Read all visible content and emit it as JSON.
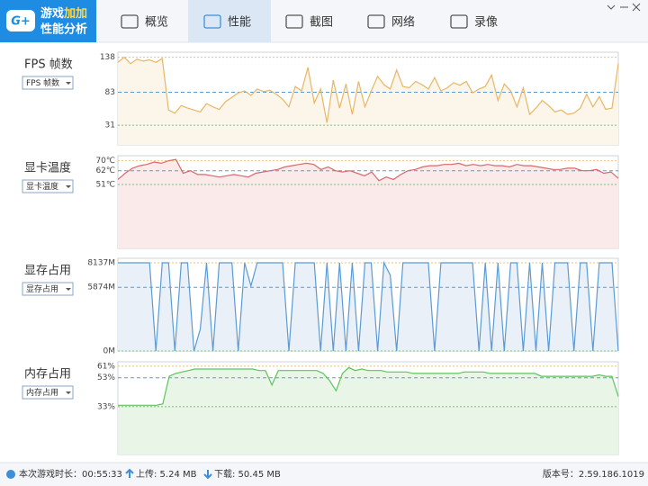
{
  "header": {
    "logo_icon": "G+",
    "logo_top": [
      "游戏",
      "加加"
    ],
    "logo_bottom": "性能分析",
    "tabs": [
      "概览",
      "性能",
      "截图",
      "网络",
      "录像"
    ],
    "active_tab": 1
  },
  "chart_data": [
    {
      "type": "area",
      "title": "FPS 帧数",
      "selector": "FPS 帧数",
      "color": "#e8b667",
      "fill": "#fbf5ea",
      "ylim": [
        0,
        146
      ],
      "yticks": [
        138,
        83,
        31
      ],
      "values": [
        130,
        138,
        128,
        135,
        132,
        134,
        130,
        136,
        55,
        50,
        62,
        58,
        55,
        52,
        65,
        60,
        56,
        68,
        75,
        82,
        85,
        78,
        88,
        84,
        86,
        80,
        72,
        60,
        92,
        85,
        122,
        66,
        88,
        35,
        102,
        58,
        96,
        48,
        100,
        60,
        85,
        108,
        95,
        88,
        118,
        92,
        90,
        100,
        95,
        88,
        106,
        85,
        90,
        98,
        94,
        100,
        82,
        88,
        92,
        110,
        70,
        96,
        85,
        60,
        90,
        48,
        58,
        70,
        62,
        52,
        55,
        48,
        50,
        58,
        80,
        60,
        76,
        56,
        58,
        128
      ]
    },
    {
      "type": "area",
      "title": "显卡温度",
      "selector": "显卡温度",
      "color": "#d9686b",
      "fill": "#fbeaea",
      "ylim": [
        0,
        74
      ],
      "yticks": [
        {
          "value": 70,
          "label": "70℃"
        },
        {
          "value": 62,
          "label": "62℃"
        },
        {
          "value": 51,
          "label": "51℃"
        }
      ],
      "values": [
        55,
        60,
        64,
        66,
        67,
        69,
        68,
        70,
        71,
        60,
        62,
        59,
        59,
        58,
        57,
        58,
        59,
        58,
        57,
        60,
        61,
        62,
        63,
        65,
        66,
        67,
        68,
        67,
        63,
        65,
        62,
        61,
        62,
        60,
        58,
        61,
        54,
        57,
        55,
        59,
        62,
        63,
        65,
        66,
        66,
        67,
        67,
        68,
        66,
        67,
        66,
        67,
        66,
        66,
        65,
        67,
        66,
        66,
        65,
        64,
        63,
        63,
        64,
        64,
        62,
        62,
        63,
        60,
        61,
        56
      ]
    },
    {
      "type": "area",
      "title": "显存占用",
      "selector": "显存占用",
      "color": "#5b9bd5",
      "fill": "#eaf0f8",
      "ylim": [
        0,
        8550
      ],
      "yticks": [
        {
          "value": 8137,
          "label": "8137M"
        },
        {
          "value": 5874,
          "label": "5874M"
        },
        {
          "value": 0,
          "label": "0M"
        }
      ],
      "values": [
        8137,
        8137,
        8137,
        8137,
        8137,
        8137,
        0,
        8137,
        8137,
        0,
        8137,
        8137,
        0,
        2000,
        8137,
        0,
        8137,
        8137,
        8137,
        0,
        8137,
        6000,
        8137,
        8137,
        8137,
        8137,
        8137,
        0,
        8137,
        8137,
        8137,
        8137,
        0,
        8137,
        0,
        8137,
        0,
        8137,
        0,
        8137,
        8137,
        0,
        8137,
        7000,
        0,
        8137,
        8137,
        8137,
        8137,
        8137,
        0,
        8137,
        8137,
        8137,
        8137,
        8137,
        8137,
        0,
        8137,
        0,
        8137,
        0,
        8137,
        8137,
        0,
        8137,
        0,
        8137,
        0,
        8137,
        8137,
        8137,
        0,
        8137,
        8137,
        0,
        8137,
        8137,
        8137,
        0
      ]
    },
    {
      "type": "area",
      "title": "内存占用",
      "selector": "内存占用",
      "color": "#5cc65c",
      "fill": "#e9f5e6",
      "ylim": [
        0,
        64
      ],
      "yticks": [
        {
          "value": 61,
          "label": "61%"
        },
        {
          "value": 53,
          "label": "53%"
        },
        {
          "value": 33,
          "label": "33%"
        }
      ],
      "values": [
        34,
        34,
        34,
        34,
        34,
        34,
        34,
        35,
        54,
        56,
        57,
        58,
        59,
        59,
        59,
        59,
        59,
        59,
        59,
        59,
        59,
        59,
        58,
        58,
        48,
        58,
        58,
        58,
        58,
        58,
        58,
        58,
        56,
        51,
        44,
        56,
        60,
        58,
        59,
        58,
        58,
        58,
        57,
        57,
        57,
        57,
        56,
        56,
        56,
        56,
        56,
        56,
        56,
        56,
        57,
        57,
        57,
        57,
        56,
        56,
        56,
        56,
        56,
        56,
        56,
        56,
        54,
        54,
        54,
        54,
        54,
        54,
        54,
        54,
        54,
        55,
        54,
        54,
        40
      ]
    }
  ],
  "status": {
    "duration": "本次游戏时长：00:55:33",
    "upload": "上传: 5.24 MB",
    "download": "下载: 50.45 MB",
    "version": "版本号：2.59.186.1019"
  }
}
